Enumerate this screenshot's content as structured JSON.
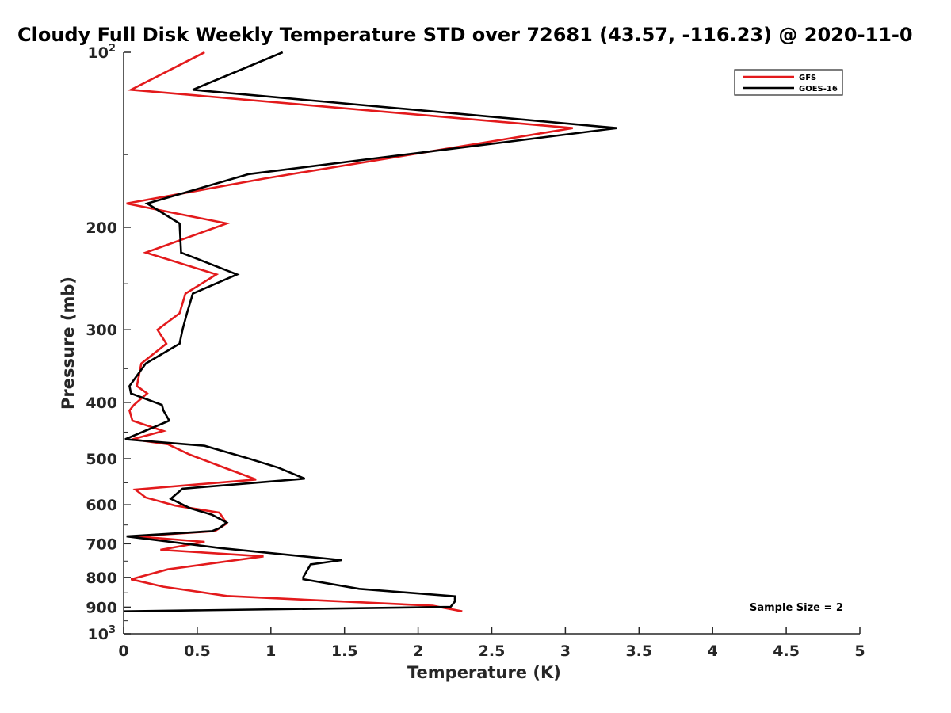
{
  "chart_data": {
    "type": "line",
    "title": "Cloudy Full Disk Weekly Temperature STD over 72681 (43.57, -116.23) @ 2020-11-0",
    "xlabel": "Temperature (K)",
    "ylabel": "Pressure (mb)",
    "xlim": [
      0,
      5
    ],
    "ylim": [
      100,
      1000
    ],
    "yscale": "log",
    "y_reversed": true,
    "grid": false,
    "legend_position": "top-right",
    "x_ticks": [
      0,
      0.5,
      1,
      1.5,
      2,
      2.5,
      3,
      3.5,
      4,
      4.5,
      5
    ],
    "x_tick_labels": [
      "0",
      "0.5",
      "1",
      "1.5",
      "2",
      "2.5",
      "3",
      "3.5",
      "4",
      "4.5",
      "5"
    ],
    "y_ticks": [
      200,
      300,
      400,
      500,
      600,
      700,
      800,
      900
    ],
    "y_tick_labels": [
      "200",
      "300",
      "400",
      "500",
      "600",
      "700",
      "800",
      "900"
    ],
    "y_tick_power_labels": [
      {
        "value": 100,
        "base": "10",
        "exp": "2"
      },
      {
        "value": 1000,
        "base": "10",
        "exp": "3"
      }
    ],
    "series": [
      {
        "name": "GFS",
        "color": "#e31a1c",
        "x": [
          0.55,
          0.05,
          3.05,
          0.95,
          0.02,
          0.7,
          0.15,
          0.63,
          0.42,
          0.38,
          0.23,
          0.29,
          0.12,
          0.09,
          0.16,
          0.07,
          0.04,
          0.06,
          0.27,
          0.06,
          0.3,
          0.45,
          0.7,
          0.9,
          0.08,
          0.15,
          0.35,
          0.65,
          0.7,
          0.62,
          0.08,
          0.55,
          0.25,
          0.95,
          0.3,
          0.05,
          0.27,
          0.7,
          2.1,
          2.3
        ],
        "y": [
          100,
          116,
          135,
          165,
          182,
          197,
          221,
          241,
          260,
          281,
          300,
          317,
          343,
          375,
          386,
          404,
          413,
          430,
          448,
          463,
          472,
          492,
          520,
          543,
          565,
          583,
          602,
          619,
          646,
          666,
          680,
          695,
          717,
          736,
          775,
          806,
          830,
          861,
          895,
          915
        ]
      },
      {
        "name": "GOES-16",
        "color": "#000000",
        "x": [
          1.08,
          0.47,
          3.35,
          0.85,
          0.16,
          0.38,
          0.39,
          0.77,
          0.47,
          0.43,
          0.4,
          0.38,
          0.15,
          0.04,
          0.05,
          0.26,
          0.27,
          0.31,
          0.01,
          0.55,
          0.83,
          1.05,
          1.23,
          0.4,
          0.32,
          0.45,
          0.6,
          0.7,
          0.65,
          0.6,
          0.02,
          0.65,
          1.48,
          1.27,
          1.22,
          1.22,
          1.6,
          2.25,
          2.25,
          2.22,
          0.0
        ],
        "y": [
          100,
          116,
          135,
          162,
          182,
          197,
          221,
          241,
          260,
          281,
          300,
          317,
          343,
          375,
          386,
          404,
          413,
          430,
          463,
          475,
          498,
          518,
          541,
          563,
          586,
          608,
          624,
          644,
          658,
          666,
          680,
          712,
          747,
          760,
          799,
          806,
          837,
          862,
          880,
          899,
          915
        ]
      }
    ],
    "annotations": [
      "Sample Size = 2"
    ]
  }
}
